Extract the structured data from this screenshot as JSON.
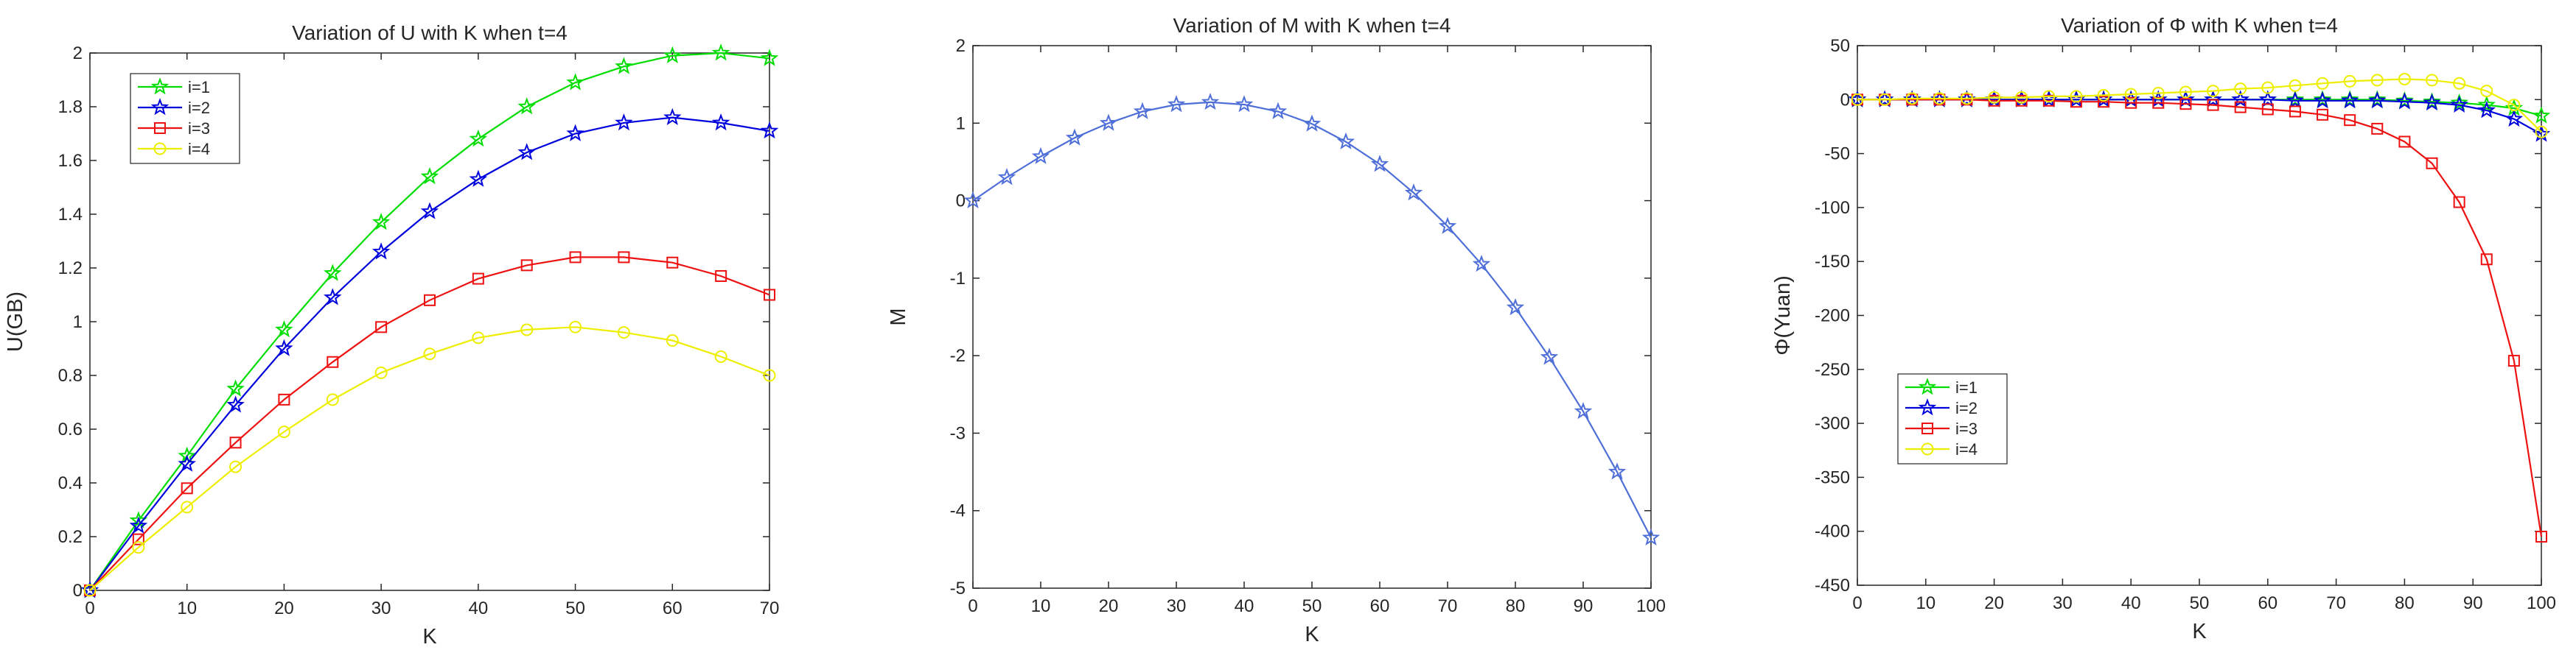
{
  "chart_data": [
    {
      "type": "line",
      "title": "Variation of U with K when t=4",
      "xlabel": "K",
      "ylabel": "U(GB)",
      "xlim": [
        0,
        70
      ],
      "ylim": [
        0,
        2
      ],
      "xticks": [
        0,
        10,
        20,
        30,
        40,
        50,
        60,
        70
      ],
      "yticks": [
        0,
        0.2,
        0.4,
        0.6,
        0.8,
        1,
        1.2,
        1.4,
        1.6,
        1.8,
        2
      ],
      "ytick_labels": [
        "0",
        "0.2",
        "0.4",
        "0.6",
        "0.8",
        "1",
        "1.2",
        "1.4",
        "1.6",
        "1.8",
        "2"
      ],
      "grid": false,
      "legend": "top-left",
      "x": [
        0,
        5,
        10,
        15,
        20,
        25,
        30,
        35,
        40,
        45,
        50,
        55,
        60,
        65,
        70
      ],
      "series": [
        {
          "name": "i=1",
          "color": "#00dd00",
          "marker": "star",
          "values": [
            0,
            0.26,
            0.5,
            0.75,
            0.97,
            1.18,
            1.37,
            1.54,
            1.68,
            1.8,
            1.89,
            1.95,
            1.99,
            2.0,
            1.98
          ]
        },
        {
          "name": "i=2",
          "color": "#0000dd",
          "marker": "star",
          "values": [
            0,
            0.24,
            0.47,
            0.69,
            0.9,
            1.09,
            1.26,
            1.41,
            1.53,
            1.63,
            1.7,
            1.74,
            1.76,
            1.74,
            1.71
          ]
        },
        {
          "name": "i=3",
          "color": "#ee1111",
          "marker": "square",
          "values": [
            0,
            0.19,
            0.38,
            0.55,
            0.71,
            0.85,
            0.98,
            1.08,
            1.16,
            1.21,
            1.24,
            1.24,
            1.22,
            1.17,
            1.1
          ]
        },
        {
          "name": "i=4",
          "color": "#eeee00",
          "marker": "circle",
          "values": [
            0,
            0.16,
            0.31,
            0.46,
            0.59,
            0.71,
            0.81,
            0.88,
            0.94,
            0.97,
            0.98,
            0.96,
            0.93,
            0.87,
            0.8
          ]
        }
      ]
    },
    {
      "type": "line",
      "title": "Variation of M with K when t=4",
      "xlabel": "K",
      "ylabel": "M",
      "xlim": [
        0,
        100
      ],
      "ylim": [
        -5,
        2
      ],
      "xticks": [
        0,
        10,
        20,
        30,
        40,
        50,
        60,
        70,
        80,
        90,
        100
      ],
      "yticks": [
        -5,
        -4,
        -3,
        -2,
        -1,
        0,
        1,
        2
      ],
      "ytick_labels": [
        "-5",
        "-4",
        "-3",
        "-2",
        "-1",
        "0",
        "1",
        "2"
      ],
      "grid": false,
      "legend": "none",
      "x": [
        0,
        5,
        10,
        15,
        20,
        25,
        30,
        35,
        40,
        45,
        50,
        55,
        60,
        65,
        70,
        75,
        80,
        85,
        90,
        95,
        100
      ],
      "series": [
        {
          "name": "",
          "color": "#4f6fd8",
          "marker": "star",
          "values": [
            0,
            0.3,
            0.57,
            0.81,
            1.0,
            1.15,
            1.24,
            1.27,
            1.24,
            1.15,
            0.99,
            0.76,
            0.47,
            0.1,
            -0.33,
            -0.82,
            -1.38,
            -2.02,
            -2.72,
            -3.5,
            -4.35
          ]
        }
      ]
    },
    {
      "type": "line",
      "title": "Variation of Φ with K when t=4",
      "xlabel": "K",
      "ylabel": "Φ(Yuan)",
      "xlim": [
        0,
        100
      ],
      "ylim": [
        -450,
        50
      ],
      "xticks": [
        0,
        10,
        20,
        30,
        40,
        50,
        60,
        70,
        80,
        90,
        100
      ],
      "yticks": [
        -450,
        -400,
        -350,
        -300,
        -250,
        -200,
        -150,
        -100,
        -50,
        0,
        50
      ],
      "ytick_labels": [
        "-450",
        "-400",
        "-350",
        "-300",
        "-250",
        "-200",
        "-150",
        "-100",
        "-50",
        "0",
        "50"
      ],
      "grid": false,
      "legend": "bottom-left",
      "x": [
        0,
        4,
        8,
        12,
        16,
        20,
        24,
        28,
        32,
        36,
        40,
        44,
        48,
        52,
        56,
        60,
        64,
        68,
        72,
        76,
        80,
        84,
        88,
        92,
        96,
        100
      ],
      "series": [
        {
          "name": "i=1",
          "color": "#00dd00",
          "marker": "star",
          "values": [
            0,
            0,
            0,
            0,
            0,
            0,
            0,
            0,
            0,
            0,
            0,
            0,
            0,
            0,
            0,
            0,
            0,
            0,
            0,
            0,
            -1,
            -2,
            -3,
            -5,
            -8,
            -15
          ]
        },
        {
          "name": "i=2",
          "color": "#0000dd",
          "marker": "star",
          "values": [
            0,
            0,
            0,
            0,
            0,
            0,
            0,
            0,
            0,
            0,
            0,
            0,
            0,
            0,
            0,
            0,
            -1,
            -1,
            -1,
            -1,
            -2,
            -3,
            -5,
            -10,
            -18,
            -32
          ]
        },
        {
          "name": "i=3",
          "color": "#ee1111",
          "marker": "square",
          "values": [
            0,
            0,
            0,
            0,
            0,
            -1,
            -1,
            -1,
            -2,
            -2,
            -3,
            -3,
            -4,
            -5,
            -7,
            -9,
            -11,
            -14,
            -19,
            -27,
            -39,
            -59,
            -95,
            -148,
            -242,
            -405
          ]
        },
        {
          "name": "i=4",
          "color": "#eeee00",
          "marker": "circle",
          "values": [
            0,
            0,
            1,
            1,
            1,
            2,
            2,
            3,
            3,
            4,
            5,
            6,
            7,
            8,
            10,
            11,
            13,
            15,
            17,
            18,
            19,
            18,
            15,
            8,
            -5,
            -30
          ]
        }
      ]
    }
  ]
}
